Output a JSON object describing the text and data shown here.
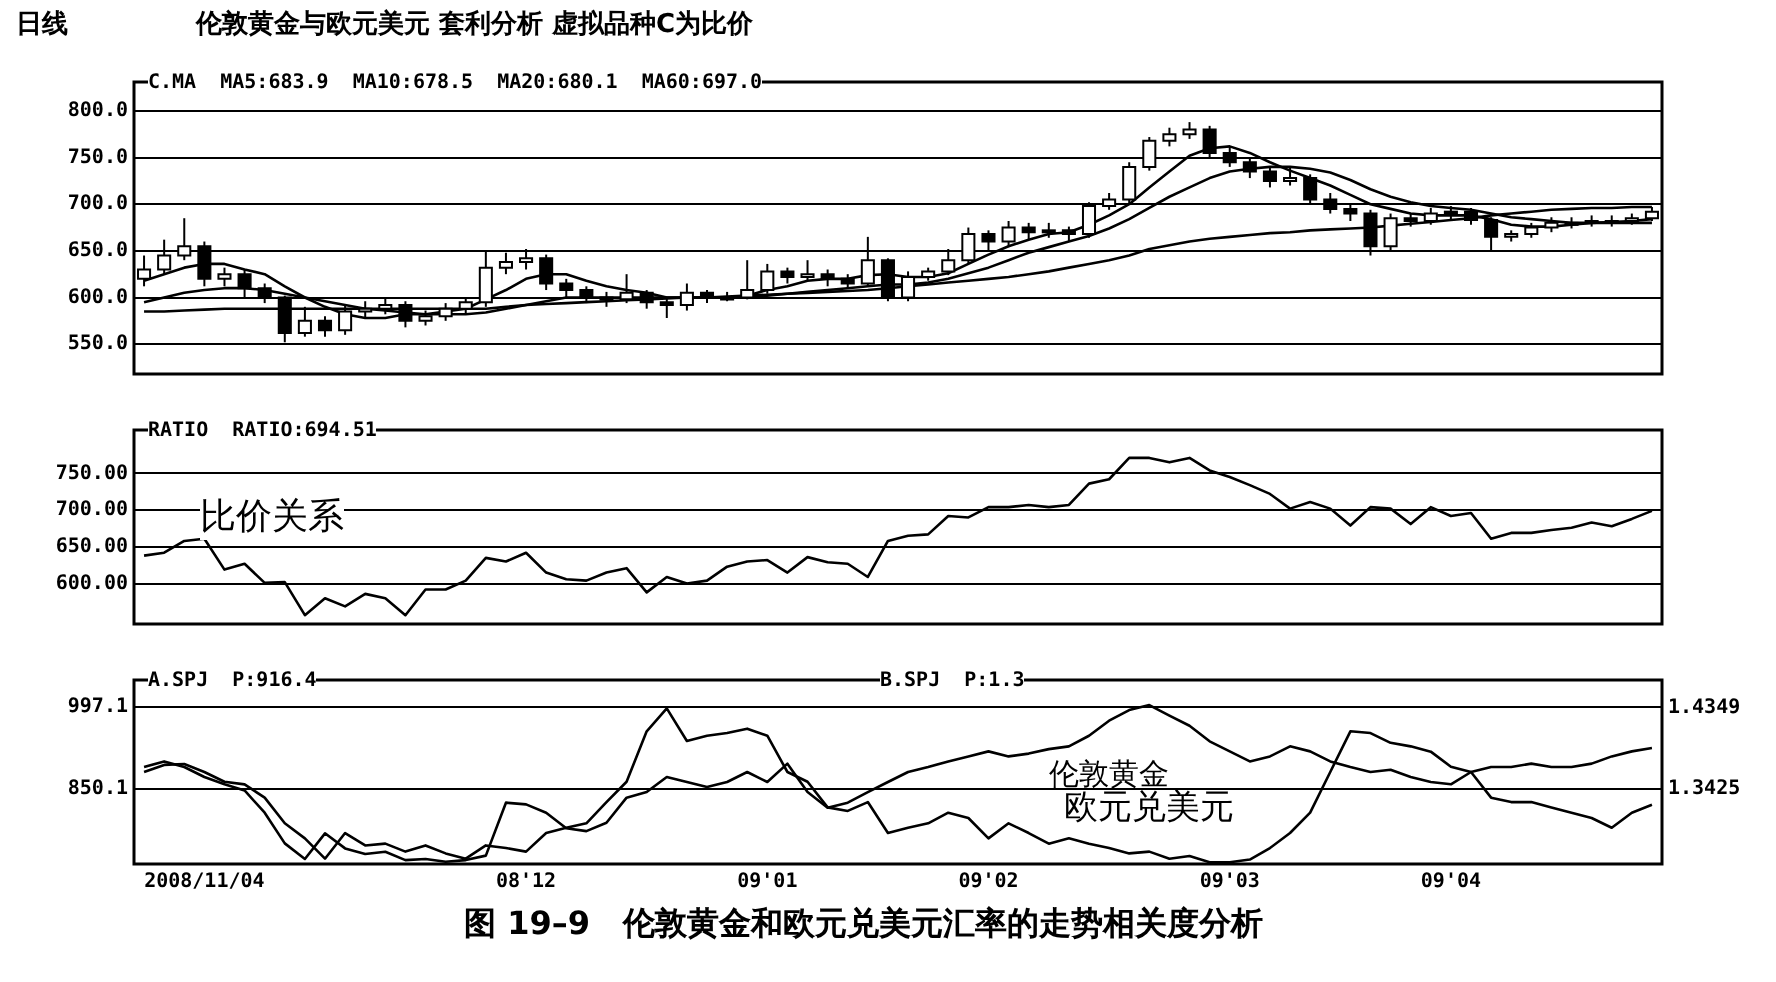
{
  "chart_data": [
    {
      "type": "candlestick",
      "title": "伦敦黄金与欧元美元 套利分析 虚拟品种C为比价",
      "annotations": [
        "日线",
        "C.MA  MA5:683.9  MA10:678.5  MA20:680.1  MA60:697.0"
      ],
      "categories": [
        null,
        null,
        null,
        null,
        null,
        null,
        null,
        null,
        null,
        null,
        null,
        null,
        null,
        null,
        null,
        null,
        null,
        null,
        null,
        null,
        null,
        null,
        null,
        null,
        null,
        null,
        null,
        null,
        null,
        null,
        null,
        null,
        null,
        null,
        null,
        null,
        null,
        null,
        null,
        null,
        null,
        null,
        null,
        null,
        null,
        null,
        null,
        null,
        null,
        null,
        null,
        null,
        null,
        null,
        null,
        null,
        null,
        null,
        null,
        null,
        null,
        null,
        null,
        null,
        null,
        null,
        null,
        null,
        null,
        null,
        null,
        null,
        null,
        null,
        null,
        null
      ],
      "colors": [
        "#ffffff",
        "#ffffff",
        "#ffffff",
        "#000000",
        "#ffffff",
        "#000000",
        "#000000",
        "#000000",
        "#ffffff",
        "#000000",
        "#ffffff",
        "#ffffff",
        "#ffffff",
        "#000000",
        "#ffffff",
        "#ffffff",
        "#ffffff",
        "#ffffff",
        "#ffffff",
        "#ffffff",
        "#000000",
        "#000000",
        "#000000",
        "#000000",
        "#ffffff",
        "#000000",
        "#000000",
        "#ffffff",
        "#000000",
        "#ffffff",
        "#ffffff",
        "#ffffff",
        "#000000",
        "#ffffff",
        "#000000",
        "#000000",
        "#ffffff",
        "#000000",
        "#ffffff",
        "#ffffff",
        "#ffffff",
        "#ffffff",
        "#000000",
        "#ffffff",
        "#000000",
        "#ffffff",
        "#000000",
        "#ffffff",
        "#ffffff",
        "#ffffff",
        "#ffffff",
        "#ffffff",
        "#ffffff",
        "#000000",
        "#000000",
        "#000000",
        "#000000",
        "#ffffff",
        "#000000",
        "#000000",
        "#000000",
        "#000000",
        "#ffffff",
        "#000000",
        "#ffffff",
        "#ffffff",
        "#000000",
        "#000000",
        "#ffffff",
        "#ffffff",
        "#ffffff",
        "#ffffff",
        "#ffffff",
        "#ffffff",
        "#ffffff",
        "#ffffff"
      ],
      "ohlc": [
        [
          620,
          645,
          612,
          630
        ],
        [
          630,
          662,
          625,
          645
        ],
        [
          645,
          685,
          640,
          655
        ],
        [
          655,
          660,
          612,
          620
        ],
        [
          620,
          632,
          612,
          625
        ],
        [
          625,
          630,
          600,
          610
        ],
        [
          610,
          615,
          594,
          600
        ],
        [
          600,
          602,
          552,
          562
        ],
        [
          562,
          590,
          558,
          575
        ],
        [
          575,
          580,
          558,
          565
        ],
        [
          565,
          592,
          560,
          585
        ],
        [
          585,
          596,
          578,
          588
        ],
        [
          588,
          600,
          582,
          592
        ],
        [
          592,
          596,
          568,
          575
        ],
        [
          575,
          586,
          570,
          580
        ],
        [
          580,
          594,
          575,
          588
        ],
        [
          588,
          600,
          582,
          595
        ],
        [
          595,
          650,
          590,
          632
        ],
        [
          632,
          648,
          625,
          638
        ],
        [
          638,
          652,
          630,
          642
        ],
        [
          642,
          646,
          608,
          615
        ],
        [
          615,
          620,
          600,
          608
        ],
        [
          608,
          612,
          594,
          600
        ],
        [
          600,
          606,
          590,
          598
        ],
        [
          598,
          625,
          594,
          605
        ],
        [
          605,
          608,
          588,
          595
        ],
        [
          595,
          600,
          578,
          592
        ],
        [
          592,
          615,
          586,
          605
        ],
        [
          605,
          608,
          594,
          600
        ],
        [
          600,
          606,
          596,
          600
        ],
        [
          600,
          640,
          598,
          608
        ],
        [
          608,
          636,
          604,
          628
        ],
        [
          628,
          632,
          615,
          622
        ],
        [
          622,
          640,
          618,
          625
        ],
        [
          625,
          630,
          612,
          620
        ],
        [
          620,
          625,
          610,
          615
        ],
        [
          615,
          665,
          612,
          640
        ],
        [
          640,
          642,
          596,
          600
        ],
        [
          600,
          628,
          596,
          622
        ],
        [
          622,
          632,
          618,
          628
        ],
        [
          628,
          652,
          624,
          640
        ],
        [
          640,
          675,
          636,
          668
        ],
        [
          668,
          672,
          650,
          660
        ],
        [
          660,
          682,
          654,
          675
        ],
        [
          675,
          680,
          662,
          670
        ],
        [
          670,
          680,
          664,
          672
        ],
        [
          672,
          676,
          660,
          668
        ],
        [
          668,
          702,
          664,
          698
        ],
        [
          698,
          712,
          694,
          705
        ],
        [
          705,
          745,
          700,
          740
        ],
        [
          740,
          772,
          736,
          768
        ],
        [
          768,
          782,
          762,
          775
        ],
        [
          775,
          788,
          770,
          780
        ],
        [
          780,
          784,
          750,
          755
        ],
        [
          755,
          762,
          740,
          745
        ],
        [
          745,
          750,
          728,
          735
        ],
        [
          735,
          740,
          718,
          725
        ],
        [
          725,
          740,
          720,
          728
        ],
        [
          728,
          732,
          700,
          705
        ],
        [
          705,
          712,
          690,
          695
        ],
        [
          695,
          700,
          682,
          690
        ],
        [
          690,
          694,
          645,
          655
        ],
        [
          655,
          690,
          650,
          685
        ],
        [
          685,
          690,
          676,
          682
        ],
        [
          682,
          696,
          678,
          690
        ],
        [
          690,
          698,
          684,
          692
        ],
        [
          692,
          696,
          678,
          683
        ],
        [
          683,
          686,
          650,
          665
        ],
        [
          665,
          672,
          660,
          668
        ],
        [
          668,
          680,
          664,
          675
        ],
        [
          675,
          686,
          670,
          680
        ],
        [
          680,
          686,
          674,
          680
        ],
        [
          680,
          688,
          676,
          682
        ],
        [
          682,
          688,
          676,
          682
        ],
        [
          682,
          690,
          678,
          685
        ],
        [
          685,
          697,
          682,
          692
        ]
      ],
      "series": [
        {
          "type": "line",
          "color": "#000000",
          "values": [
            618,
            625,
            632,
            636,
            636,
            630,
            625,
            612,
            600,
            590,
            582,
            578,
            578,
            582,
            582,
            585,
            588,
            598,
            608,
            620,
            625,
            625,
            618,
            612,
            608,
            605,
            600,
            600,
            600,
            600,
            602,
            608,
            612,
            618,
            620,
            620,
            624,
            625,
            622,
            622,
            626,
            636,
            646,
            655,
            662,
            668,
            670,
            678,
            688,
            700,
            718,
            735,
            752,
            760,
            762,
            755,
            745,
            736,
            728,
            720,
            710,
            700,
            695,
            690,
            688,
            688,
            688,
            684,
            678,
            676,
            676,
            678,
            680,
            681,
            682,
            684
          ]
        },
        {
          "type": "line",
          "color": "#000000",
          "values": [
            595,
            600,
            605,
            608,
            610,
            610,
            608,
            604,
            600,
            596,
            592,
            588,
            586,
            584,
            582,
            582,
            582,
            584,
            588,
            592,
            596,
            600,
            600,
            600,
            600,
            600,
            600,
            600,
            600,
            600,
            600,
            602,
            604,
            606,
            608,
            610,
            612,
            614,
            614,
            616,
            620,
            626,
            632,
            640,
            648,
            654,
            660,
            666,
            674,
            684,
            696,
            708,
            718,
            728,
            735,
            738,
            740,
            740,
            738,
            734,
            726,
            716,
            708,
            702,
            698,
            696,
            694,
            690,
            686,
            684,
            682,
            680,
            680,
            680,
            680,
            680
          ]
        },
        {
          "type": "line",
          "color": "#000000",
          "values": [
            585,
            585,
            586,
            587,
            588,
            588,
            588,
            588,
            588,
            588,
            588,
            588,
            588,
            588,
            588,
            588,
            588,
            588,
            590,
            592,
            593,
            594,
            595,
            596,
            597,
            598,
            599,
            600,
            600,
            601,
            602,
            603,
            604,
            605,
            606,
            607,
            608,
            610,
            612,
            614,
            616,
            618,
            620,
            622,
            625,
            628,
            632,
            636,
            640,
            645,
            652,
            656,
            660,
            663,
            665,
            667,
            669,
            670,
            672,
            673,
            674,
            675,
            677,
            679,
            681,
            683,
            685,
            688,
            690,
            692,
            694,
            695,
            696,
            696,
            697,
            697
          ]
        }
      ],
      "ylim": [
        518,
        831
      ],
      "yticks": [
        {
          "value": 550,
          "label": "550.0"
        },
        {
          "value": 600,
          "label": "600.0"
        },
        {
          "value": 650,
          "label": "650.0"
        },
        {
          "value": 700,
          "label": "700.0"
        },
        {
          "value": 750,
          "label": "750.0"
        },
        {
          "value": 800,
          "label": "800.0"
        }
      ],
      "grid": "y",
      "tick_labels": "y"
    },
    {
      "type": "line",
      "annotations": [
        "RATIO  RATIO:694.51",
        "比价关系"
      ],
      "categories": [
        null,
        null,
        null,
        null,
        null,
        null,
        null,
        null,
        null,
        null,
        null,
        null,
        null,
        null,
        null,
        null,
        null,
        null,
        null,
        null,
        null,
        null,
        null,
        null,
        null,
        null,
        null,
        null,
        null,
        null,
        null,
        null,
        null,
        null,
        null,
        null,
        null,
        null,
        null,
        null,
        null,
        null,
        null,
        null,
        null,
        null,
        null,
        null,
        null,
        null,
        null,
        null,
        null,
        null,
        null,
        null,
        null,
        null,
        null,
        null,
        null,
        null,
        null,
        null,
        null,
        null,
        null,
        null,
        null,
        null,
        null,
        null,
        null,
        null,
        null,
        null
      ],
      "series": [
        {
          "color": "#000000",
          "values": [
            638,
            642,
            658,
            661,
            619,
            627,
            601,
            602,
            557,
            580,
            569,
            586,
            580,
            557,
            592,
            592,
            604,
            635,
            630,
            642,
            615,
            606,
            604,
            615,
            621,
            588,
            609,
            600,
            604,
            623,
            630,
            632,
            615,
            636,
            629,
            627,
            609,
            658,
            665,
            667,
            692,
            690,
            704,
            704,
            707,
            704,
            707,
            736,
            742,
            771,
            771,
            765,
            771,
            754,
            745,
            734,
            722,
            702,
            711,
            702,
            679,
            704,
            702,
            681,
            704,
            692,
            696,
            661,
            669,
            669,
            673,
            676,
            683,
            678,
            688,
            699
          ]
        }
      ],
      "ylim": [
        545,
        809
      ],
      "yticks": [
        {
          "value": 600,
          "label": "600.00"
        },
        {
          "value": 650,
          "label": "650.00"
        },
        {
          "value": 700,
          "label": "700.00"
        },
        {
          "value": 750,
          "label": "750.00"
        }
      ],
      "grid": "y",
      "tick_labels": "y"
    },
    {
      "type": "line",
      "annotations": [
        "A.SPJ  P:916.4",
        "B.SPJ  P:1.3",
        "图 19–9   伦敦黄金和欧元兑美元汇率的走势相关度分析"
      ],
      "categories": [
        null,
        null,
        null,
        "2008/11/04",
        null,
        null,
        null,
        null,
        null,
        null,
        null,
        null,
        null,
        null,
        null,
        null,
        null,
        null,
        null,
        "08'12",
        null,
        null,
        null,
        null,
        null,
        null,
        null,
        null,
        null,
        null,
        null,
        "09'01",
        null,
        null,
        null,
        null,
        null,
        null,
        null,
        null,
        null,
        null,
        "09'02",
        null,
        null,
        null,
        null,
        null,
        null,
        null,
        null,
        null,
        null,
        null,
        "09'03",
        null,
        null,
        null,
        null,
        null,
        null,
        null,
        null,
        null,
        null,
        "09'04",
        null,
        null,
        null,
        null,
        null,
        null,
        null,
        null,
        null,
        null
      ],
      "series": [
        {
          "name": "伦敦黄金",
          "color": "#000000",
          "axis": "y",
          "values": [
            890,
            900,
            890,
            872,
            859,
            848,
            808,
            753,
            725,
            771,
            744,
            734,
            738,
            723,
            725,
            720,
            723,
            731,
            826,
            823,
            808,
            780,
            775,
            790,
            835,
            845,
            872,
            863,
            854,
            863,
            881,
            863,
            896,
            845,
            817,
            826,
            845,
            863,
            881,
            890,
            900,
            909,
            918,
            909,
            914,
            922,
            927,
            946,
            973,
            992,
            1001,
            982,
            964,
            936,
            918,
            900,
            909,
            927,
            918,
            900,
            890,
            881,
            885,
            872,
            863,
            859,
            881,
            890,
            890,
            896,
            890,
            890,
            896,
            909,
            918,
            924
          ]
        },
        {
          "name": "欧元兑美元",
          "color": "#000000",
          "axis": "y2",
          "values": [
            1.362,
            1.37,
            1.371,
            1.362,
            1.351,
            1.348,
            1.333,
            1.304,
            1.287,
            1.264,
            1.293,
            1.279,
            1.281,
            1.272,
            1.279,
            1.27,
            1.264,
            1.279,
            1.276,
            1.272,
            1.293,
            1.299,
            1.304,
            1.328,
            1.351,
            1.408,
            1.434,
            1.397,
            1.403,
            1.406,
            1.411,
            1.403,
            1.362,
            1.351,
            1.322,
            1.318,
            1.328,
            1.293,
            1.299,
            1.304,
            1.316,
            1.31,
            1.287,
            1.304,
            1.293,
            1.281,
            1.287,
            1.281,
            1.276,
            1.27,
            1.272,
            1.264,
            1.267,
            1.26,
            1.26,
            1.263,
            1.276,
            1.293,
            1.316,
            1.362,
            1.408,
            1.406,
            1.395,
            1.391,
            1.385,
            1.368,
            1.362,
            1.333,
            1.328,
            1.328,
            1.322,
            1.316,
            1.31,
            1.299,
            1.316,
            1.325
          ]
        }
      ],
      "ylim": [
        716,
        1046
      ],
      "yticks": [
        850.1,
        997.1
      ],
      "y2lim": [
        1.258,
        1.466
      ],
      "y2ticks": [
        1.3425,
        1.4349
      ],
      "grid": "y"
    }
  ]
}
